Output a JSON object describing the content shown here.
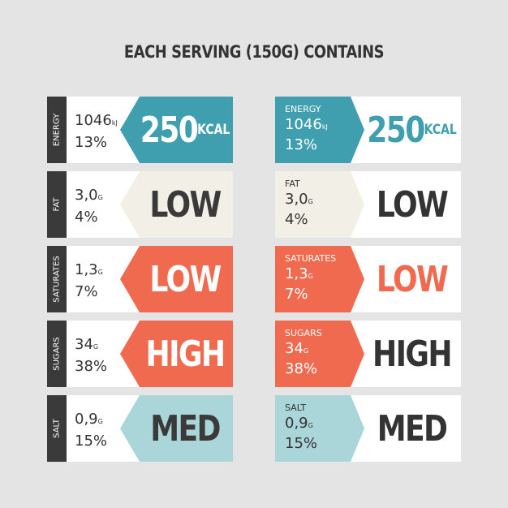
{
  "title": "EACH SERVING (150G) CONTAINS",
  "colors": {
    "teal": "#3f9fae",
    "cream": "#f2efe6",
    "coral": "#ef6a4f",
    "lightblue": "#aad5d9",
    "dark": "#3a3a3a"
  },
  "rows": [
    {
      "label": "ENERGY",
      "amount": "1046",
      "unit": "kJ",
      "percent": "13%",
      "level": "250",
      "level_unit": "KCAL",
      "color": "#3f9fae"
    },
    {
      "label": "FAT",
      "amount": "3,0",
      "unit": "G",
      "percent": "4%",
      "level": "LOW",
      "level_unit": "",
      "color": "#f2efe6"
    },
    {
      "label": "SATURATES",
      "amount": "1,3",
      "unit": "G",
      "percent": "7%",
      "level": "LOW",
      "level_unit": "",
      "color": "#ef6a4f"
    },
    {
      "label": "SUGARS",
      "amount": "34",
      "unit": "G",
      "percent": "38%",
      "level": "HIGH",
      "level_unit": "",
      "color": "#ef6a4f"
    },
    {
      "label": "SALT",
      "amount": "0,9",
      "unit": "G",
      "percent": "15%",
      "level": "MED",
      "level_unit": "",
      "color": "#aad5d9"
    }
  ]
}
